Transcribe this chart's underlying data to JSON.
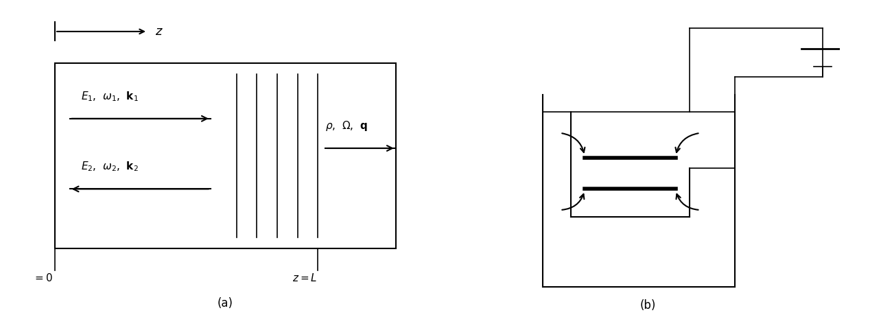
{
  "bg_color": "#ffffff",
  "line_color": "#000000",
  "fig_width": 12.84,
  "fig_height": 4.59,
  "label_a": "(a)",
  "label_b": "(b)"
}
